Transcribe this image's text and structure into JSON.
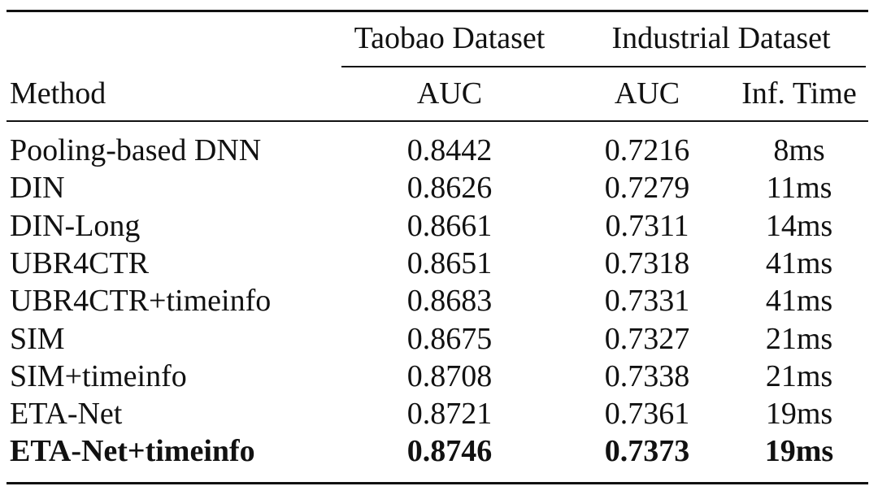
{
  "table": {
    "header_groups": [
      "Taobao Dataset",
      "Industrial Dataset"
    ],
    "columns": [
      "Method",
      "AUC",
      "AUC",
      "Inf. Time"
    ],
    "rows": [
      [
        "Pooling-based DNN",
        "0.8442",
        "0.7216",
        "8ms"
      ],
      [
        "DIN",
        "0.8626",
        "0.7279",
        "11ms"
      ],
      [
        "DIN-Long",
        "0.8661",
        "0.7311",
        "14ms"
      ],
      [
        "UBR4CTR",
        "0.8651",
        "0.7318",
        "41ms"
      ],
      [
        "UBR4CTR+timeinfo",
        "0.8683",
        "0.7331",
        "41ms"
      ],
      [
        "SIM",
        "0.8675",
        "0.7327",
        "21ms"
      ],
      [
        "SIM+timeinfo",
        "0.8708",
        "0.7338",
        "21ms"
      ],
      [
        "ETA-Net",
        "0.8721",
        "0.7361",
        "19ms"
      ],
      [
        "ETA-Net+timeinfo",
        "0.8746",
        "0.7373",
        "19ms"
      ]
    ]
  }
}
